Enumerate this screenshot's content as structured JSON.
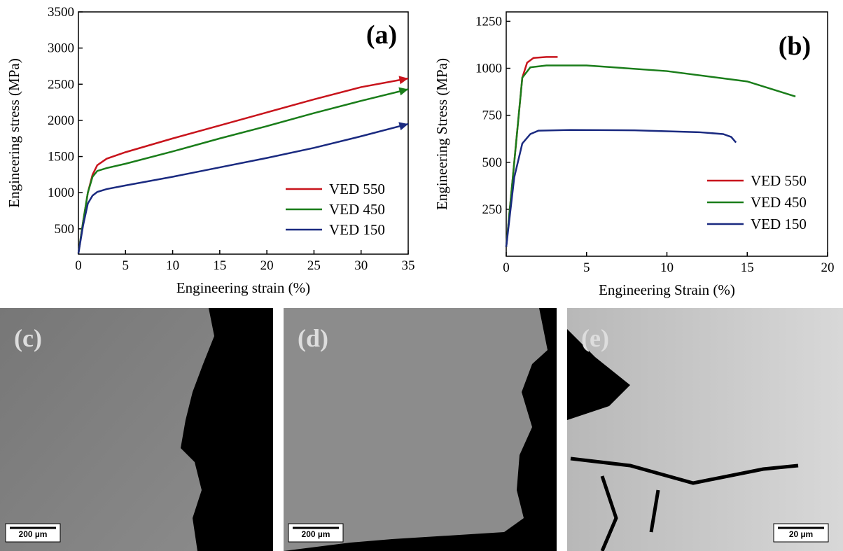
{
  "chart_data": [
    {
      "type": "line",
      "panel": "(a)",
      "xlabel": "Engineering strain (%)",
      "ylabel": "Engineering stress (MPa)",
      "xlim": [
        0,
        35
      ],
      "xticks": [
        0,
        5,
        10,
        15,
        20,
        25,
        30,
        35
      ],
      "ylim": [
        150,
        3500
      ],
      "yticks": [
        500,
        1000,
        1500,
        2000,
        2500,
        3000,
        3500
      ],
      "legend": "lower right",
      "series": [
        {
          "name": "VED 550",
          "color": "#c8141c",
          "x": [
            0,
            0.5,
            1,
            1.5,
            2,
            3,
            5,
            10,
            15,
            20,
            25,
            30,
            35
          ],
          "values": [
            160,
            600,
            1000,
            1250,
            1380,
            1470,
            1560,
            1750,
            1930,
            2110,
            2290,
            2460,
            2580
          ]
        },
        {
          "name": "VED 450",
          "color": "#1a7d1a",
          "x": [
            0,
            0.5,
            1,
            1.5,
            2,
            3,
            5,
            10,
            15,
            20,
            25,
            30,
            35
          ],
          "values": [
            160,
            600,
            1000,
            1220,
            1300,
            1340,
            1400,
            1570,
            1750,
            1920,
            2100,
            2270,
            2430
          ]
        },
        {
          "name": "VED 150",
          "color": "#1a2a80",
          "x": [
            0,
            0.5,
            1,
            1.5,
            2,
            3,
            5,
            10,
            15,
            20,
            25,
            30,
            35
          ],
          "values": [
            160,
            550,
            850,
            960,
            1010,
            1050,
            1100,
            1220,
            1350,
            1480,
            1620,
            1780,
            1950
          ]
        }
      ]
    },
    {
      "type": "line",
      "panel": "(b)",
      "xlabel": "Engineering Strain (%)",
      "ylabel": "Engineering Stress (MPa)",
      "xlim": [
        0,
        20
      ],
      "xticks": [
        0,
        5,
        10,
        15,
        20
      ],
      "ylim": [
        0,
        1300
      ],
      "yticks": [
        250,
        500,
        750,
        1000,
        1250
      ],
      "legend": "lower right",
      "series": [
        {
          "name": "VED 550",
          "color": "#c8141c",
          "x": [
            0,
            0.5,
            1,
            1.3,
            1.7,
            2.5,
            3.2
          ],
          "values": [
            50,
            500,
            950,
            1030,
            1055,
            1060,
            1060
          ]
        },
        {
          "name": "VED 450",
          "color": "#1a7d1a",
          "x": [
            0,
            0.5,
            1,
            1.5,
            2.5,
            5,
            10,
            15,
            18
          ],
          "values": [
            50,
            500,
            950,
            1005,
            1015,
            1015,
            985,
            930,
            850
          ]
        },
        {
          "name": "VED 150",
          "color": "#1a2a80",
          "x": [
            0,
            0.5,
            1,
            1.5,
            2,
            4,
            8,
            12,
            13.5,
            14,
            14.3
          ],
          "values": [
            50,
            420,
            600,
            650,
            668,
            672,
            670,
            660,
            650,
            635,
            605
          ]
        }
      ]
    }
  ],
  "images": [
    {
      "label": "(c)",
      "scale_bar": "200 µm"
    },
    {
      "label": "(d)",
      "scale_bar": "200 µm"
    },
    {
      "label": "(e)",
      "scale_bar": "20 µm"
    }
  ]
}
